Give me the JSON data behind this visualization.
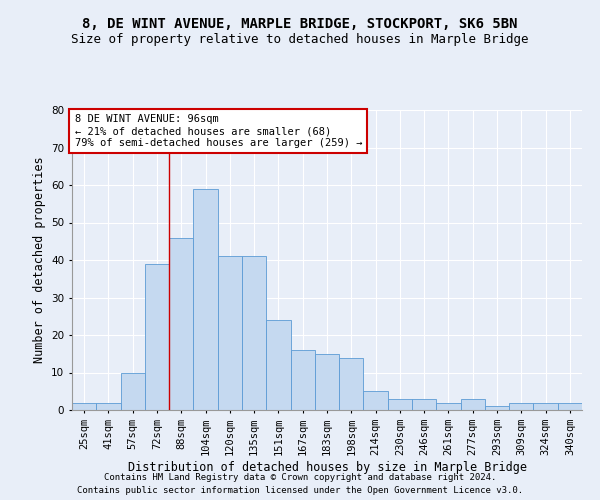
{
  "title": "8, DE WINT AVENUE, MARPLE BRIDGE, STOCKPORT, SK6 5BN",
  "subtitle": "Size of property relative to detached houses in Marple Bridge",
  "xlabel": "Distribution of detached houses by size in Marple Bridge",
  "ylabel": "Number of detached properties",
  "categories": [
    "25sqm",
    "41sqm",
    "57sqm",
    "72sqm",
    "88sqm",
    "104sqm",
    "120sqm",
    "135sqm",
    "151sqm",
    "167sqm",
    "183sqm",
    "198sqm",
    "214sqm",
    "230sqm",
    "246sqm",
    "261sqm",
    "277sqm",
    "293sqm",
    "309sqm",
    "324sqm",
    "340sqm"
  ],
  "values": [
    2,
    2,
    10,
    39,
    46,
    59,
    41,
    41,
    24,
    16,
    15,
    14,
    5,
    3,
    3,
    2,
    3,
    1,
    2,
    2,
    2
  ],
  "bar_color": "#c5d9f0",
  "bar_edge_color": "#5b9bd5",
  "annotation_box_text": "8 DE WINT AVENUE: 96sqm\n← 21% of detached houses are smaller (68)\n79% of semi-detached houses are larger (259) →",
  "annotation_box_color": "#ffffff",
  "annotation_box_edge_color": "#cc0000",
  "ylim": [
    0,
    80
  ],
  "yticks": [
    0,
    10,
    20,
    30,
    40,
    50,
    60,
    70,
    80
  ],
  "bg_color": "#e8eef8",
  "plot_bg_color": "#e8eef8",
  "footer1": "Contains HM Land Registry data © Crown copyright and database right 2024.",
  "footer2": "Contains public sector information licensed under the Open Government Licence v3.0.",
  "title_fontsize": 10,
  "subtitle_fontsize": 9,
  "xlabel_fontsize": 8.5,
  "ylabel_fontsize": 8.5,
  "tick_fontsize": 7.5,
  "footer_fontsize": 6.5,
  "vline_x": 3.5
}
